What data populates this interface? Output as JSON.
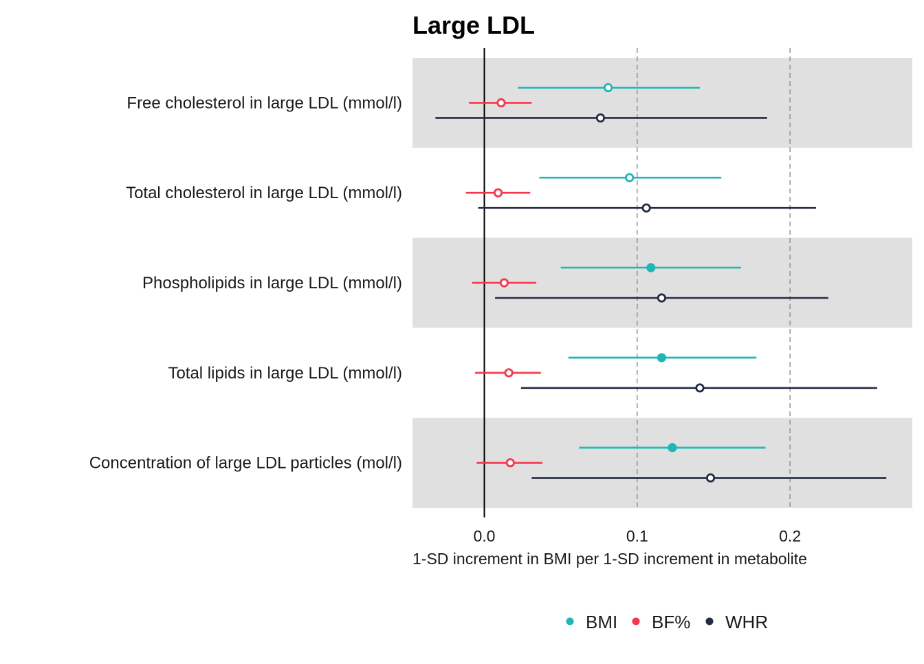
{
  "chart_data": {
    "type": "forest",
    "title": "Large LDL",
    "xlabel": "1-SD increment in BMI per 1-SD increment in metabolite",
    "xlim": [
      -0.047,
      0.28
    ],
    "xticks": [
      0.0,
      0.1,
      0.2
    ],
    "xtick_labels": [
      "0.0",
      "0.1",
      "0.2"
    ],
    "reference_line": 0,
    "dashed_lines": [
      0.1,
      0.2
    ],
    "categories": [
      "Free cholesterol in large LDL (mmol/l)",
      "Total cholesterol in large LDL (mmol/l)",
      "Phospholipids in large LDL (mmol/l)",
      "Total lipids in large LDL (mmol/l)",
      "Concentration of large LDL particles (mol/l)"
    ],
    "series": [
      {
        "name": "BMI",
        "color": "#1DB8B5",
        "estimates": [
          0.081,
          0.095,
          0.109,
          0.116,
          0.123
        ],
        "lower": [
          0.022,
          0.036,
          0.05,
          0.055,
          0.062
        ],
        "upper": [
          0.141,
          0.155,
          0.168,
          0.178,
          0.184
        ],
        "filled": [
          false,
          false,
          true,
          true,
          true
        ]
      },
      {
        "name": "BF%",
        "color": "#F8354A",
        "estimates": [
          0.011,
          0.009,
          0.013,
          0.016,
          0.017
        ],
        "lower": [
          -0.01,
          -0.012,
          -0.008,
          -0.006,
          -0.005
        ],
        "upper": [
          0.031,
          0.03,
          0.034,
          0.037,
          0.038
        ],
        "filled": [
          false,
          false,
          false,
          false,
          false
        ]
      },
      {
        "name": "WHR",
        "color": "#232B45",
        "estimates": [
          0.076,
          0.106,
          0.116,
          0.141,
          0.148
        ],
        "lower": [
          -0.032,
          -0.004,
          0.007,
          0.024,
          0.031
        ],
        "upper": [
          0.185,
          0.217,
          0.225,
          0.257,
          0.263
        ],
        "filled": [
          false,
          false,
          false,
          false,
          false
        ]
      }
    ],
    "legend": {
      "position": "bottom",
      "entries": [
        "BMI",
        "BF%",
        "WHR"
      ]
    },
    "band_shading": "alternating",
    "band_color": "#E0E0E0"
  }
}
